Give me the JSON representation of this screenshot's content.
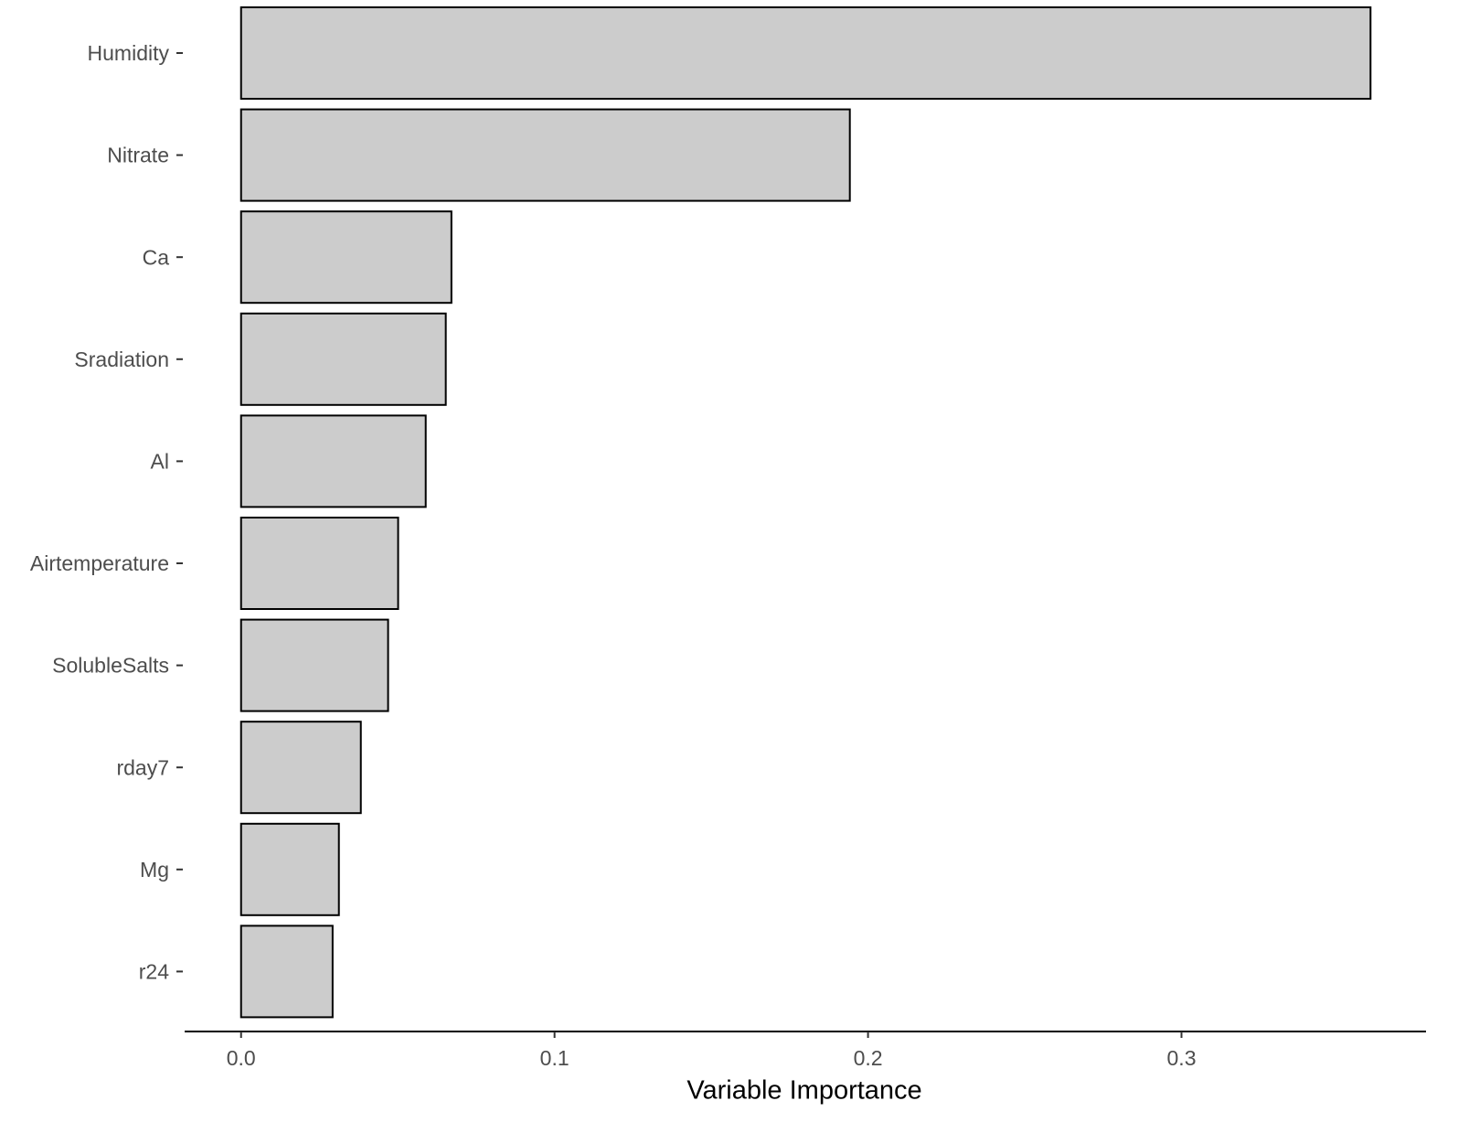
{
  "chart_data": {
    "type": "barh",
    "xlabel": "Variable Importance",
    "categories": [
      "Humidity",
      "Nitrate",
      "Ca",
      "Sradiation",
      "Al",
      "Airtemperature",
      "SolubleSalts",
      "rday7",
      "Mg",
      "r24"
    ],
    "values": [
      0.3603,
      0.1942,
      0.0671,
      0.0653,
      0.0589,
      0.0501,
      0.0469,
      0.0382,
      0.0312,
      0.0292
    ],
    "color": "#cccccc",
    "xlim": [
      -0.018,
      0.378
    ],
    "xticks": [
      {
        "value": 0,
        "label": "0.0"
      },
      0.1,
      0.2,
      0.3
    ],
    "grid": false
  }
}
